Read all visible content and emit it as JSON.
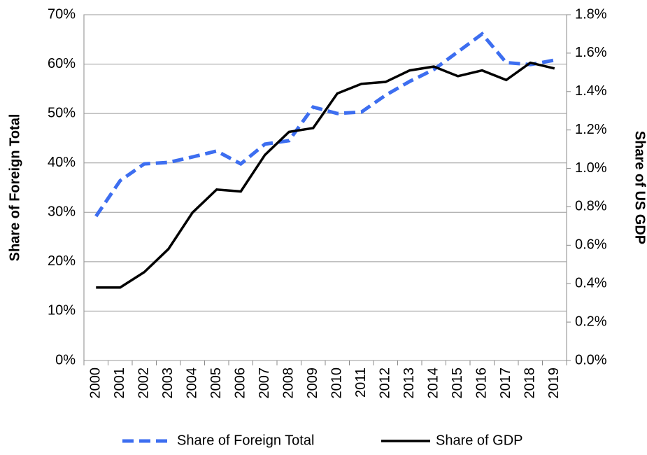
{
  "chart_data": {
    "type": "line",
    "categories": [
      "2000",
      "2001",
      "2002",
      "2003",
      "2004",
      "2005",
      "2006",
      "2007",
      "2008",
      "2009",
      "2010",
      "2011",
      "2012",
      "2013",
      "2014",
      "2015",
      "2016",
      "2017",
      "2018",
      "2019"
    ],
    "series": [
      {
        "name": "Share of Foreign Total",
        "color": "#3d6ef0",
        "dashed": true,
        "values": [
          29.2,
          36.4,
          39.8,
          40.1,
          41.2,
          42.4,
          39.8,
          43.8,
          44.5,
          51.3,
          50.0,
          50.3,
          53.7,
          56.5,
          58.9,
          62.5,
          66.1,
          60.3,
          59.9,
          60.8
        ]
      },
      {
        "name": "Share of GDP",
        "color": "#000000",
        "axis": "y2",
        "values": [
          0.38,
          0.38,
          0.46,
          0.58,
          0.77,
          0.89,
          0.88,
          1.07,
          1.19,
          1.21,
          1.39,
          1.44,
          1.45,
          1.51,
          1.53,
          1.48,
          1.51,
          1.46,
          1.55,
          1.52
        ]
      }
    ],
    "ylabel": "Share of Foreign Total",
    "y2label": "Share of US GDP",
    "ylim": [
      0,
      70
    ],
    "yticks": [
      {
        "value": 0,
        "label": "0%"
      },
      {
        "value": 10,
        "label": "10%"
      },
      {
        "value": 20,
        "label": "20%"
      },
      {
        "value": 30,
        "label": "30%"
      },
      {
        "value": 40,
        "label": "40%"
      },
      {
        "value": 50,
        "label": "50%"
      },
      {
        "value": 60,
        "label": "60%"
      },
      {
        "value": 70,
        "label": "70%"
      }
    ],
    "y2lim": [
      0,
      1.8
    ],
    "y2ticks": [
      {
        "value": 0,
        "label": "0.0%"
      },
      {
        "value": 0.2,
        "label": "0.2%"
      },
      {
        "value": 0.4,
        "label": "0.4%"
      },
      {
        "value": 0.6,
        "label": "0.6%"
      },
      {
        "value": 0.8,
        "label": "0.8%"
      },
      {
        "value": 1.0,
        "label": "1.0%"
      },
      {
        "value": 1.2,
        "label": "1.2%"
      },
      {
        "value": 1.4,
        "label": "1.4%"
      },
      {
        "value": 1.6,
        "label": "1.6%"
      },
      {
        "value": 1.8,
        "label": "1.8%"
      }
    ],
    "grid": true,
    "legend": "bottom"
  }
}
